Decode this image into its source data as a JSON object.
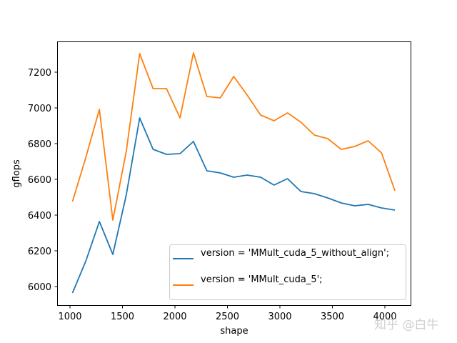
{
  "chart_data": {
    "type": "line",
    "title": "",
    "xlabel": "shape",
    "ylabel": "gflops",
    "xlim": [
      870,
      4225
    ],
    "ylim": [
      5890,
      7370
    ],
    "xticks": [
      1000,
      1500,
      2000,
      2500,
      3000,
      3500,
      4000
    ],
    "xtick_labels": [
      "1000",
      "1500",
      "2000",
      "2500",
      "3000",
      "3500",
      "4000"
    ],
    "yticks": [
      6000,
      6200,
      6400,
      6600,
      6800,
      7000,
      7200
    ],
    "ytick_labels": [
      "6000",
      "6200",
      "6400",
      "6600",
      "6800",
      "7000",
      "7200"
    ],
    "grid": false,
    "legend_position": "lower right",
    "x": [
      1024,
      1152,
      1280,
      1408,
      1536,
      1664,
      1792,
      1920,
      2048,
      2176,
      2304,
      2432,
      2560,
      2688,
      2816,
      2944,
      3072,
      3200,
      3328,
      3456,
      3584,
      3712,
      3840,
      3968,
      4096
    ],
    "series": [
      {
        "name": "version = 'MMult_cuda_5_without_align';",
        "color": "#1f77b4",
        "values": [
          5964,
          6144,
          6364,
          6180,
          6512,
          6944,
          6768,
          6740,
          6744,
          6812,
          6648,
          6636,
          6612,
          6624,
          6612,
          6568,
          6604,
          6532,
          6520,
          6496,
          6468,
          6452,
          6460,
          6440,
          6428
        ]
      },
      {
        "name": "version = 'MMult_cuda_5';",
        "color": "#ff7f0e",
        "values": [
          6476,
          6724,
          6992,
          6372,
          6756,
          7304,
          7108,
          7108,
          6944,
          7308,
          7064,
          7056,
          7176,
          7072,
          6960,
          6928,
          6972,
          6920,
          6848,
          6828,
          6768,
          6784,
          6816,
          6748,
          6536
        ]
      }
    ]
  },
  "watermark": "知乎 @白牛"
}
